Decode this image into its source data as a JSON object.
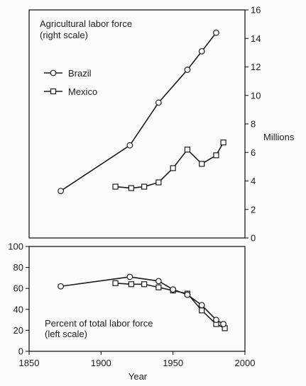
{
  "chart_data": [
    {
      "type": "line",
      "title": "Agricultural labor force",
      "subtitle": "(right scale)",
      "ylabel": "Millions",
      "ylim": [
        0,
        16
      ],
      "yticks": [
        "0",
        "2",
        "4",
        "6",
        "8",
        "10",
        "12",
        "14",
        "16"
      ],
      "legend_position": "top-left",
      "series": [
        {
          "name": "Brazil",
          "marker": "circle",
          "x": [
            1872,
            1920,
            1940,
            1960,
            1970,
            1980
          ],
          "values": [
            3.3,
            6.5,
            9.5,
            11.8,
            13.1,
            14.4
          ]
        },
        {
          "name": "Mexico",
          "marker": "square",
          "x": [
            1910,
            1921,
            1930,
            1940,
            1950,
            1960,
            1970,
            1980,
            1985
          ],
          "values": [
            3.6,
            3.5,
            3.6,
            3.9,
            4.9,
            6.2,
            5.2,
            5.8,
            6.7
          ]
        }
      ]
    },
    {
      "type": "line",
      "title": "Percent of total labor force",
      "subtitle": "(left scale)",
      "xlabel": "Year",
      "xlim": [
        1850,
        2000
      ],
      "xticks": [
        "1850",
        "1900",
        "1950",
        "2000"
      ],
      "ylim": [
        0,
        100
      ],
      "yticks": [
        "0",
        "20",
        "40",
        "60",
        "80",
        "100"
      ],
      "series": [
        {
          "name": "Brazil",
          "marker": "circle",
          "x": [
            1872,
            1920,
            1940,
            1950,
            1960,
            1970,
            1980,
            1985
          ],
          "values": [
            62,
            71,
            67,
            59,
            54,
            44,
            30,
            26
          ]
        },
        {
          "name": "Mexico",
          "marker": "square",
          "x": [
            1910,
            1921,
            1930,
            1940,
            1950,
            1960,
            1970,
            1980,
            1986
          ],
          "values": [
            65,
            64,
            64,
            61,
            58,
            55,
            39,
            26,
            22
          ]
        }
      ]
    }
  ]
}
